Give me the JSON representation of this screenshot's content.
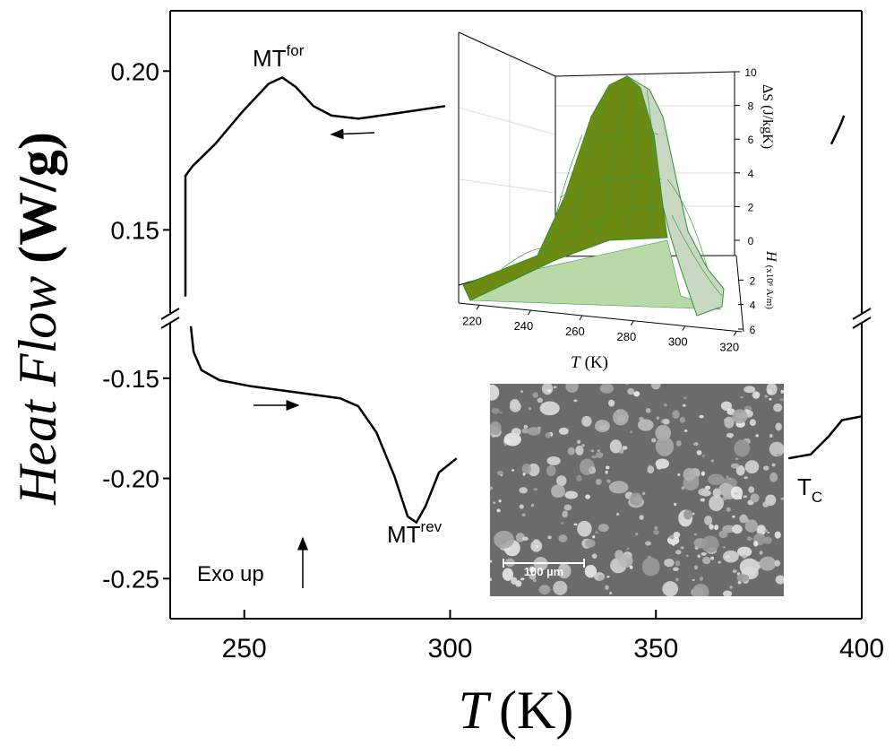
{
  "chart_data": [
    {
      "type": "line",
      "xlabel": "T",
      "xunit": "(K)",
      "ylabel": "Heat Flow",
      "yunit": "(W/g)",
      "xlim": [
        232,
        400
      ],
      "xticks": [
        250,
        300,
        350,
        400
      ],
      "panels": [
        {
          "ylim": [
            0.123,
            0.219
          ],
          "yticks": [
            {
              "value": 0.2,
              "label": "0.20"
            },
            0.15
          ],
          "series": [
            {
              "color": "#000000",
              "x": [
                235.7,
                235.7,
                237.4,
                242.9,
                249.4,
                255.9,
                259.2,
                262.5,
                266.8,
                271.2,
                277.7,
                288.6,
                298.8,
                null,
                392.6,
                394.8,
                395.7
              ],
              "values": [
                0.129,
                0.167,
                0.17,
                0.177,
                0.187,
                0.196,
                0.198,
                0.195,
                0.189,
                0.186,
                0.185,
                0.187,
                0.189,
                null,
                0.177,
                0.183,
                0.186
              ]
            }
          ]
        },
        {
          "ylim": [
            -0.27,
            -0.121
          ],
          "yticks": [
            -0.15,
            {
              "value": -0.2,
              "label": "-0.20"
            },
            -0.25
          ],
          "series": [
            {
              "color": "#000000",
              "x": [
                237.0,
                237.7,
                239.6,
                244.0,
                251.6,
                262.5,
                273.3,
                277.7,
                282.1,
                286.5,
                289.7,
                291.8,
                294.0,
                297.3,
                301.6,
                null,
                382.2,
                387.6,
                392.0,
                395.2,
                400
              ],
              "values": [
                -0.124,
                -0.137,
                -0.146,
                -0.151,
                -0.154,
                -0.157,
                -0.16,
                -0.164,
                -0.177,
                -0.199,
                -0.219,
                -0.222,
                -0.214,
                -0.197,
                -0.19,
                null,
                -0.19,
                -0.188,
                -0.179,
                -0.171,
                -0.169
              ]
            }
          ]
        }
      ],
      "annotations": [
        {
          "text": "MT",
          "sup": "for"
        },
        {
          "text": "MT",
          "sup": "rev"
        },
        {
          "text": "T",
          "sub": "C"
        },
        {
          "text": "Exo up"
        }
      ],
      "image_scale": "100 µm"
    },
    {
      "type": "surface",
      "xlabel": "T",
      "xunit": "(K)",
      "zlabel": "ΔS (J/kgK)",
      "ylabel": "H",
      "yunit": "(x10⁶ A/m)",
      "xlim": [
        212,
        322
      ],
      "xticks": [
        220,
        240,
        260,
        280,
        300,
        320
      ],
      "zlim": [
        0,
        10
      ],
      "zticks": [
        0,
        2,
        4,
        6,
        8,
        10
      ],
      "ylim": [
        0,
        6
      ],
      "yticks": [
        2,
        4,
        6
      ]
    }
  ]
}
